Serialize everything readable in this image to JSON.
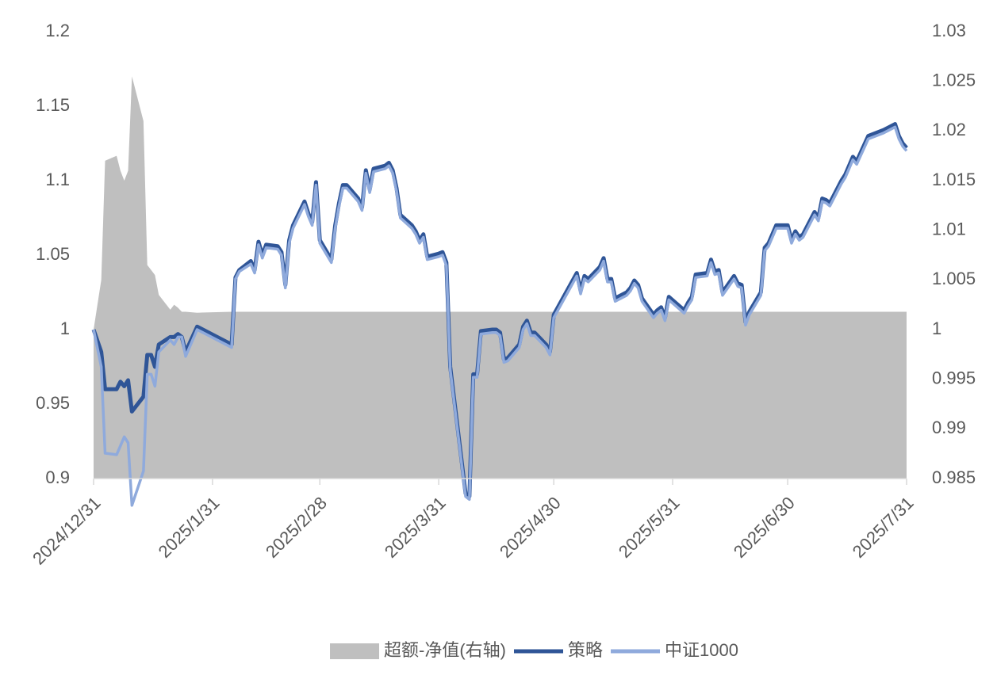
{
  "chart_data": {
    "type": "line",
    "x": [
      "2024/12/31",
      "2025/1/2",
      "2025/1/3",
      "2025/1/6",
      "2025/1/7",
      "2025/1/8",
      "2025/1/9",
      "2025/1/10",
      "2025/1/13",
      "2025/1/14",
      "2025/1/15",
      "2025/1/16",
      "2025/1/17",
      "2025/1/20",
      "2025/1/21",
      "2025/1/22",
      "2025/1/23",
      "2025/1/24",
      "2025/1/27",
      "2025/2/5",
      "2025/2/6",
      "2025/2/7",
      "2025/2/10",
      "2025/2/11",
      "2025/2/12",
      "2025/2/13",
      "2025/2/14",
      "2025/2/17",
      "2025/2/18",
      "2025/2/19",
      "2025/2/20",
      "2025/2/21",
      "2025/2/24",
      "2025/2/25",
      "2025/2/26",
      "2025/2/27",
      "2025/2/28",
      "2025/3/3",
      "2025/3/4",
      "2025/3/5",
      "2025/3/6",
      "2025/3/7",
      "2025/3/10",
      "2025/3/11",
      "2025/3/12",
      "2025/3/13",
      "2025/3/14",
      "2025/3/17",
      "2025/3/18",
      "2025/3/19",
      "2025/3/20",
      "2025/3/21",
      "2025/3/24",
      "2025/3/25",
      "2025/3/26",
      "2025/3/27",
      "2025/3/28",
      "2025/3/31",
      "2025/4/1",
      "2025/4/2",
      "2025/4/3",
      "2025/4/7",
      "2025/4/8",
      "2025/4/9",
      "2025/4/10",
      "2025/4/11",
      "2025/4/14",
      "2025/4/15",
      "2025/4/16",
      "2025/4/17",
      "2025/4/18",
      "2025/4/21",
      "2025/4/22",
      "2025/4/23",
      "2025/4/24",
      "2025/4/25",
      "2025/4/28",
      "2025/4/29",
      "2025/4/30",
      "2025/5/6",
      "2025/5/7",
      "2025/5/8",
      "2025/5/9",
      "2025/5/12",
      "2025/5/13",
      "2025/5/14",
      "2025/5/15",
      "2025/5/16",
      "2025/5/19",
      "2025/5/20",
      "2025/5/21",
      "2025/5/22",
      "2025/5/23",
      "2025/5/26",
      "2025/5/27",
      "2025/5/28",
      "2025/5/29",
      "2025/5/30",
      "2025/6/3",
      "2025/6/4",
      "2025/6/5",
      "2025/6/6",
      "2025/6/9",
      "2025/6/10",
      "2025/6/11",
      "2025/6/12",
      "2025/6/13",
      "2025/6/16",
      "2025/6/17",
      "2025/6/18",
      "2025/6/19",
      "2025/6/20",
      "2025/6/23",
      "2025/6/24",
      "2025/6/25",
      "2025/6/26",
      "2025/6/27",
      "2025/6/30",
      "2025/7/1",
      "2025/7/2",
      "2025/7/3",
      "2025/7/4",
      "2025/7/7",
      "2025/7/8",
      "2025/7/9",
      "2025/7/10",
      "2025/7/11",
      "2025/7/14",
      "2025/7/15",
      "2025/7/16",
      "2025/7/17",
      "2025/7/18",
      "2025/7/21",
      "2025/7/22",
      "2025/7/23",
      "2025/7/24",
      "2025/7/25",
      "2025/7/28",
      "2025/7/29",
      "2025/7/30",
      "2025/7/31"
    ],
    "series": [
      {
        "name": "超额-净值(右轴)",
        "color": "#bfbfbf",
        "axis": "y2",
        "kind": "area",
        "values": [
          1.0,
          1.005,
          1.017,
          1.0175,
          1.016,
          1.015,
          1.016,
          1.0255,
          1.021,
          1.0065,
          1.006,
          1.0055,
          1.0035,
          1.002,
          1.0025,
          1.0022,
          1.0018,
          1.0018,
          1.0017,
          1.0018,
          1.0018,
          1.0018,
          1.0018,
          1.0018,
          1.0018,
          1.0018,
          1.0018,
          1.0018,
          1.0018,
          1.0018,
          1.0018,
          1.0018,
          1.0018,
          1.0018,
          1.0018,
          1.0018,
          1.0018,
          1.0018,
          1.0018,
          1.0018,
          1.0018,
          1.0018,
          1.0018,
          1.0018,
          1.0018,
          1.0018,
          1.0018,
          1.0018,
          1.0018,
          1.0018,
          1.0018,
          1.0018,
          1.0018,
          1.0018,
          1.0018,
          1.0018,
          1.0018,
          1.0018,
          1.0018,
          1.0018,
          1.0018,
          1.0018,
          1.0018,
          1.0018,
          1.0018,
          1.0018,
          1.0018,
          1.0018,
          1.0018,
          1.0018,
          1.0018,
          1.0018,
          1.0018,
          1.0018,
          1.0018,
          1.0018,
          1.0018,
          1.0018,
          1.0018,
          1.0018,
          1.0018,
          1.0018,
          1.0018,
          1.0018,
          1.0018,
          1.0018,
          1.0018,
          1.0018,
          1.0018,
          1.0018,
          1.0018,
          1.0018,
          1.0018,
          1.0018,
          1.0018,
          1.0018,
          1.0018,
          1.0018,
          1.0018,
          1.0018,
          1.0018,
          1.0018,
          1.0018,
          1.0018,
          1.0018,
          1.0018,
          1.0018,
          1.0018,
          1.0018,
          1.0018,
          1.0018,
          1.0018,
          1.0018,
          1.0018,
          1.0018,
          1.0018,
          1.0018,
          1.0018,
          1.0018,
          1.0018,
          1.0018,
          1.0018,
          1.0018,
          1.0018,
          1.0018,
          1.0018,
          1.0018,
          1.0018,
          1.0018,
          1.0018,
          1.0018,
          1.0018,
          1.0018,
          1.0018,
          1.0018,
          1.0018,
          1.0018,
          1.0018,
          1.0018,
          1.0018,
          1.0018
        ]
      },
      {
        "name": "策略",
        "color": "#2f5597",
        "kind": "line",
        "values": [
          1.0,
          0.985,
          0.96,
          0.96,
          0.965,
          0.962,
          0.966,
          0.945,
          0.955,
          0.983,
          0.983,
          0.975,
          0.99,
          0.995,
          0.995,
          0.997,
          0.995,
          0.985,
          1.002,
          0.99,
          1.035,
          1.04,
          1.046,
          1.04,
          1.059,
          1.05,
          1.057,
          1.056,
          1.052,
          1.03,
          1.06,
          1.07,
          1.086,
          1.078,
          1.072,
          1.099,
          1.06,
          1.047,
          1.07,
          1.085,
          1.097,
          1.097,
          1.088,
          1.082,
          1.107,
          1.094,
          1.108,
          1.11,
          1.112,
          1.107,
          1.095,
          1.077,
          1.07,
          1.066,
          1.06,
          1.064,
          1.049,
          1.051,
          1.052,
          1.045,
          0.975,
          0.89,
          0.888,
          0.97,
          0.97,
          0.999,
          1.0,
          1.0,
          0.998,
          0.98,
          0.981,
          0.99,
          1.002,
          1.006,
          0.998,
          0.998,
          0.99,
          0.985,
          1.01,
          1.038,
          1.026,
          1.036,
          1.034,
          1.042,
          1.048,
          1.034,
          1.034,
          1.021,
          1.025,
          1.028,
          1.033,
          1.03,
          1.021,
          1.01,
          1.013,
          1.015,
          1.008,
          1.022,
          1.013,
          1.018,
          1.022,
          1.037,
          1.038,
          1.047,
          1.039,
          1.04,
          1.025,
          1.036,
          1.031,
          1.03,
          1.005,
          1.012,
          1.025,
          1.055,
          1.058,
          1.064,
          1.07,
          1.07,
          1.06,
          1.066,
          1.062,
          1.064,
          1.079,
          1.075,
          1.088,
          1.087,
          1.085,
          1.1,
          1.104,
          1.11,
          1.116,
          1.113,
          1.13,
          1.131,
          1.132,
          1.133,
          1.134,
          1.138,
          1.13,
          1.125,
          1.122
        ]
      },
      {
        "name": "中证1000",
        "color": "#8faadc",
        "kind": "line",
        "values": [
          1.0,
          0.975,
          0.917,
          0.916,
          0.922,
          0.928,
          0.924,
          0.882,
          0.905,
          0.97,
          0.97,
          0.962,
          0.985,
          0.993,
          0.99,
          0.995,
          0.995,
          0.982,
          1.0,
          0.988,
          1.034,
          1.039,
          1.044,
          1.038,
          1.057,
          1.048,
          1.055,
          1.054,
          1.05,
          1.028,
          1.058,
          1.068,
          1.084,
          1.076,
          1.07,
          1.097,
          1.058,
          1.045,
          1.068,
          1.083,
          1.095,
          1.095,
          1.086,
          1.08,
          1.105,
          1.092,
          1.106,
          1.108,
          1.11,
          1.105,
          1.093,
          1.075,
          1.068,
          1.064,
          1.058,
          1.062,
          1.047,
          1.049,
          1.05,
          1.043,
          0.973,
          0.888,
          0.886,
          0.968,
          0.968,
          0.997,
          0.998,
          0.998,
          0.996,
          0.978,
          0.979,
          0.988,
          1.0,
          1.004,
          0.996,
          0.996,
          0.988,
          0.983,
          1.008,
          1.036,
          1.024,
          1.034,
          1.032,
          1.04,
          1.046,
          1.032,
          1.032,
          1.019,
          1.023,
          1.026,
          1.031,
          1.028,
          1.019,
          1.008,
          1.011,
          1.013,
          1.006,
          1.02,
          1.011,
          1.016,
          1.02,
          1.035,
          1.036,
          1.045,
          1.037,
          1.038,
          1.023,
          1.034,
          1.029,
          1.028,
          1.003,
          1.01,
          1.023,
          1.053,
          1.056,
          1.062,
          1.068,
          1.068,
          1.058,
          1.064,
          1.06,
          1.062,
          1.077,
          1.073,
          1.086,
          1.085,
          1.083,
          1.098,
          1.102,
          1.108,
          1.114,
          1.111,
          1.128,
          1.129,
          1.13,
          1.131,
          1.132,
          1.136,
          1.128,
          1.123,
          1.12
        ]
      }
    ],
    "xlim": [
      "2024/12/31",
      "2025/7/31"
    ],
    "xticks": [
      "2024/12/31",
      "2025/1/31",
      "2025/2/28",
      "2025/3/31",
      "2025/4/30",
      "2025/5/31",
      "2025/6/30",
      "2025/7/31"
    ],
    "ylim": [
      0.9,
      1.2
    ],
    "yticks": [
      0.9,
      0.95,
      1,
      1.05,
      1.1,
      1.15,
      1.2
    ],
    "y2lim": [
      0.985,
      1.03
    ],
    "y2ticks": [
      0.985,
      0.99,
      0.995,
      1,
      1.005,
      1.01,
      1.015,
      1.02,
      1.025,
      1.03
    ],
    "grid": false,
    "legend": "bottom"
  }
}
